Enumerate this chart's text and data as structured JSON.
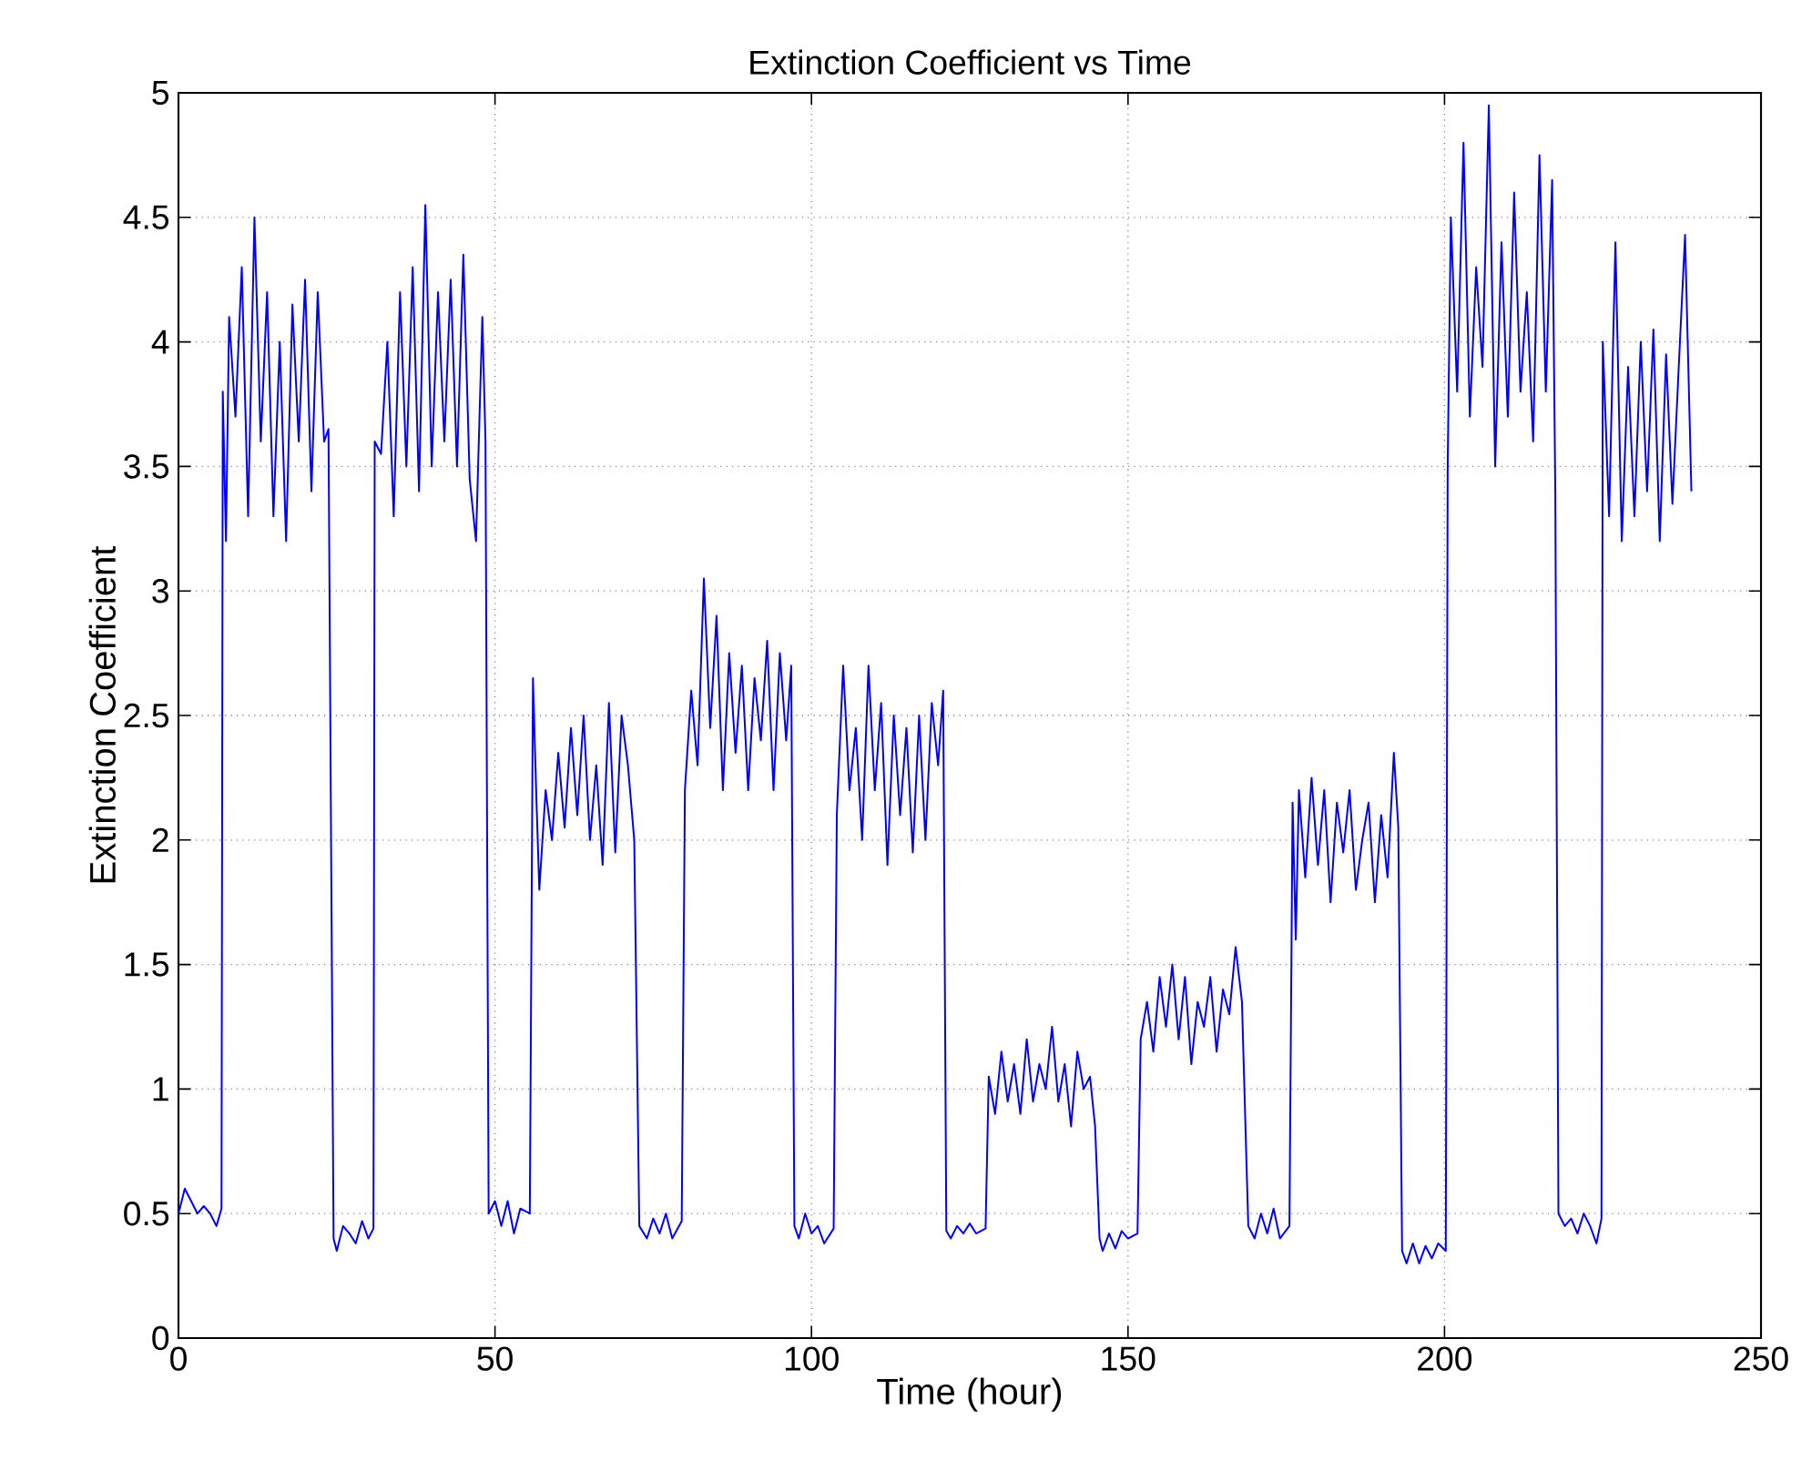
{
  "chart_data": {
    "type": "line",
    "title": "Extinction Coefficient vs Time",
    "xlabel": "Time (hour)",
    "ylabel": "Extinction Coefficient",
    "xlim": [
      0,
      250
    ],
    "ylim": [
      0,
      5
    ],
    "xticks": [
      0,
      50,
      100,
      150,
      200,
      250
    ],
    "yticks": [
      0,
      0.5,
      1,
      1.5,
      2,
      2.5,
      3,
      3.5,
      4,
      4.5,
      5
    ],
    "grid": true,
    "line_style": "solid",
    "marker": "none",
    "series": [
      {
        "color": "#0000ff",
        "x": [
          0,
          1,
          2,
          3,
          4,
          5,
          6,
          6.8,
          7,
          7.5,
          8,
          9,
          10,
          11,
          12,
          13,
          14,
          15,
          16,
          17,
          18,
          19,
          20,
          21,
          22,
          23,
          23.7,
          24.5,
          25,
          26,
          27,
          28,
          29,
          30,
          30.8,
          31,
          32,
          33,
          34,
          35,
          36,
          37,
          38,
          39,
          40,
          41,
          42,
          43,
          44,
          45,
          46,
          47,
          48,
          48.5,
          49,
          50,
          51,
          52,
          53,
          54,
          55.5,
          56,
          56.5,
          57,
          58,
          59,
          60,
          61,
          62,
          63,
          64,
          65,
          66,
          67,
          68,
          69,
          70,
          71,
          72,
          72.8,
          74,
          75,
          76,
          77,
          78,
          79.5,
          80,
          81,
          82,
          83,
          84,
          85,
          86,
          87,
          88,
          89,
          90,
          91,
          92,
          93,
          94,
          95,
          96,
          96.8,
          97.3,
          98,
          99,
          100,
          101,
          102,
          103.5,
          104,
          105,
          106,
          107,
          108,
          109,
          110,
          111,
          112,
          113,
          114,
          115,
          116,
          117,
          118,
          119,
          120,
          120.8,
          121.3,
          122,
          123,
          124,
          125,
          126,
          127.5,
          128,
          129,
          130,
          131,
          132,
          133,
          134,
          135,
          136,
          137,
          138,
          139,
          140,
          141,
          142,
          143,
          144,
          144.8,
          145.5,
          146,
          147,
          148,
          149,
          150,
          151.5,
          152,
          153,
          154,
          155,
          156,
          157,
          158,
          159,
          160,
          161,
          162,
          163,
          164,
          165,
          166,
          167,
          168,
          169,
          170,
          171,
          172,
          173,
          174,
          175.5,
          176,
          176.5,
          177,
          178,
          179,
          180,
          181,
          182,
          183,
          184,
          185,
          186,
          187,
          188,
          189,
          190,
          191,
          192,
          192.7,
          193.3,
          194,
          195,
          196,
          197,
          198,
          199,
          200.2,
          200.5,
          201,
          202,
          203,
          204,
          205,
          206,
          207,
          208,
          209,
          210,
          211,
          212,
          213,
          214,
          215,
          216,
          217,
          217.5,
          218,
          219,
          220,
          221,
          222,
          223,
          224,
          224.8,
          225,
          226,
          227,
          228,
          229,
          230,
          231,
          232,
          233,
          234,
          235,
          236,
          237,
          238,
          239
        ],
        "values": [
          0.5,
          0.6,
          0.55,
          0.5,
          0.53,
          0.5,
          0.45,
          0.52,
          3.8,
          3.2,
          4.1,
          3.7,
          4.3,
          3.3,
          4.5,
          3.6,
          4.2,
          3.3,
          4.0,
          3.2,
          4.15,
          3.6,
          4.25,
          3.4,
          4.2,
          3.6,
          3.65,
          0.4,
          0.35,
          0.45,
          0.42,
          0.38,
          0.47,
          0.4,
          0.44,
          3.6,
          3.55,
          4.0,
          3.3,
          4.2,
          3.5,
          4.3,
          3.4,
          4.55,
          3.5,
          4.2,
          3.6,
          4.25,
          3.5,
          4.35,
          3.45,
          3.2,
          4.1,
          3.6,
          0.5,
          0.55,
          0.45,
          0.55,
          0.42,
          0.52,
          0.5,
          2.65,
          2.2,
          1.8,
          2.2,
          2.0,
          2.35,
          2.05,
          2.45,
          2.1,
          2.5,
          2.0,
          2.3,
          1.9,
          2.55,
          1.95,
          2.5,
          2.3,
          2.0,
          0.45,
          0.4,
          0.48,
          0.42,
          0.5,
          0.4,
          0.47,
          2.2,
          2.6,
          2.3,
          3.05,
          2.45,
          2.9,
          2.2,
          2.75,
          2.35,
          2.7,
          2.2,
          2.65,
          2.4,
          2.8,
          2.2,
          2.75,
          2.4,
          2.7,
          0.45,
          0.4,
          0.5,
          0.42,
          0.45,
          0.38,
          0.44,
          2.1,
          2.7,
          2.2,
          2.45,
          2.0,
          2.7,
          2.2,
          2.55,
          1.9,
          2.5,
          2.1,
          2.45,
          1.95,
          2.5,
          2.0,
          2.55,
          2.3,
          2.6,
          0.43,
          0.4,
          0.45,
          0.42,
          0.46,
          0.42,
          0.44,
          1.05,
          0.9,
          1.15,
          0.95,
          1.1,
          0.9,
          1.2,
          0.95,
          1.1,
          1.0,
          1.25,
          0.95,
          1.1,
          0.85,
          1.15,
          1.0,
          1.05,
          0.85,
          0.4,
          0.35,
          0.42,
          0.36,
          0.43,
          0.4,
          0.42,
          1.2,
          1.35,
          1.15,
          1.45,
          1.25,
          1.5,
          1.2,
          1.45,
          1.1,
          1.35,
          1.25,
          1.45,
          1.15,
          1.4,
          1.3,
          1.57,
          1.35,
          0.45,
          0.4,
          0.5,
          0.42,
          0.52,
          0.4,
          0.45,
          2.15,
          1.6,
          2.2,
          1.85,
          2.25,
          1.9,
          2.2,
          1.75,
          2.15,
          1.95,
          2.2,
          1.8,
          2.0,
          2.15,
          1.75,
          2.1,
          1.85,
          2.35,
          2.05,
          0.35,
          0.3,
          0.38,
          0.3,
          0.37,
          0.32,
          0.38,
          0.35,
          3.5,
          4.5,
          3.8,
          4.8,
          3.7,
          4.3,
          3.9,
          4.95,
          3.5,
          4.4,
          3.7,
          4.6,
          3.8,
          4.2,
          3.6,
          4.75,
          3.8,
          4.65,
          3.4,
          0.5,
          0.45,
          0.48,
          0.42,
          0.5,
          0.45,
          0.38,
          0.48,
          4.0,
          3.3,
          4.4,
          3.2,
          3.9,
          3.3,
          4.0,
          3.4,
          4.05,
          3.2,
          3.95,
          3.35,
          3.9,
          4.43,
          3.4
        ]
      }
    ]
  }
}
